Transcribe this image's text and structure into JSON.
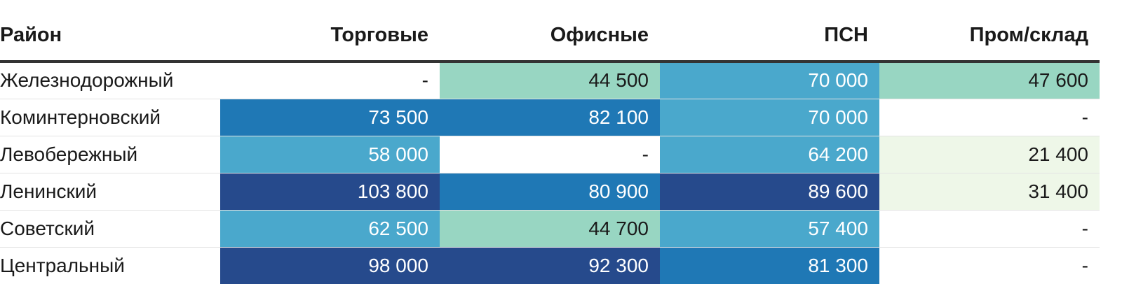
{
  "chart_data": {
    "type": "table",
    "columns": [
      "Район",
      "Торговые",
      "Офисные",
      "ПСН",
      "Пром/склад"
    ],
    "rows": [
      {
        "district": "Железнодорожный",
        "cells": [
          {
            "text": "-",
            "value": null,
            "bg": "#ffffff",
            "fg": "#1a1a1a"
          },
          {
            "text": "44 500",
            "value": 44500,
            "bg": "#98d6c2",
            "fg": "#1a1a1a"
          },
          {
            "text": "70 000",
            "value": 70000,
            "bg": "#4aa8cc",
            "fg": "#ffffff"
          },
          {
            "text": "47 600",
            "value": 47600,
            "bg": "#98d6c2",
            "fg": "#1a1a1a"
          }
        ]
      },
      {
        "district": "Коминтерновский",
        "cells": [
          {
            "text": "73 500",
            "value": 73500,
            "bg": "#1f78b5",
            "fg": "#ffffff"
          },
          {
            "text": "82 100",
            "value": 82100,
            "bg": "#1f78b5",
            "fg": "#ffffff"
          },
          {
            "text": "70 000",
            "value": 70000,
            "bg": "#4aa8cc",
            "fg": "#ffffff"
          },
          {
            "text": "-",
            "value": null,
            "bg": "#ffffff",
            "fg": "#1a1a1a"
          }
        ]
      },
      {
        "district": "Левобережный",
        "cells": [
          {
            "text": "58 000",
            "value": 58000,
            "bg": "#4aa8cc",
            "fg": "#ffffff"
          },
          {
            "text": "-",
            "value": null,
            "bg": "#ffffff",
            "fg": "#1a1a1a"
          },
          {
            "text": "64 200",
            "value": 64200,
            "bg": "#4aa8cc",
            "fg": "#ffffff"
          },
          {
            "text": "21 400",
            "value": 21400,
            "bg": "#eef7e8",
            "fg": "#1a1a1a"
          }
        ]
      },
      {
        "district": "Ленинский",
        "cells": [
          {
            "text": "103 800",
            "value": 103800,
            "bg": "#264a8c",
            "fg": "#ffffff"
          },
          {
            "text": "80 900",
            "value": 80900,
            "bg": "#1f78b5",
            "fg": "#ffffff"
          },
          {
            "text": "89 600",
            "value": 89600,
            "bg": "#264a8c",
            "fg": "#ffffff"
          },
          {
            "text": "31 400",
            "value": 31400,
            "bg": "#eef7e8",
            "fg": "#1a1a1a"
          }
        ]
      },
      {
        "district": "Советский",
        "cells": [
          {
            "text": "62 500",
            "value": 62500,
            "bg": "#4aa8cc",
            "fg": "#ffffff"
          },
          {
            "text": "44 700",
            "value": 44700,
            "bg": "#98d6c2",
            "fg": "#1a1a1a"
          },
          {
            "text": "57 400",
            "value": 57400,
            "bg": "#4aa8cc",
            "fg": "#ffffff"
          },
          {
            "text": "-",
            "value": null,
            "bg": "#ffffff",
            "fg": "#1a1a1a"
          }
        ]
      },
      {
        "district": "Центральный",
        "cells": [
          {
            "text": "98 000",
            "value": 98000,
            "bg": "#264a8c",
            "fg": "#ffffff"
          },
          {
            "text": "92 300",
            "value": 92300,
            "bg": "#264a8c",
            "fg": "#ffffff"
          },
          {
            "text": "81 300",
            "value": 81300,
            "bg": "#1f78b5",
            "fg": "#ffffff"
          },
          {
            "text": "-",
            "value": null,
            "bg": "#ffffff",
            "fg": "#1a1a1a"
          }
        ]
      }
    ]
  }
}
